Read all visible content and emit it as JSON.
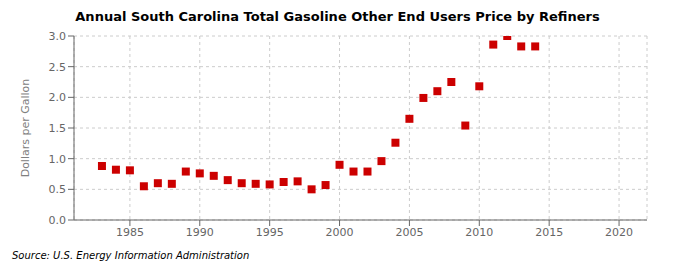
{
  "chart_data": {
    "type": "scatter",
    "title": "Annual South Carolina Total Gasoline Other End Users Price by Refiners",
    "ylabel": "Dollars per Gallon",
    "annotations": [
      "Source: U.S. Energy Information Administration"
    ],
    "x": [
      1983,
      1984,
      1985,
      1986,
      1987,
      1988,
      1989,
      1990,
      1991,
      1992,
      1993,
      1994,
      1995,
      1996,
      1997,
      1998,
      1999,
      2000,
      2001,
      2002,
      2003,
      2004,
      2005,
      2006,
      2007,
      2008,
      2009,
      2010,
      2011,
      2012,
      2013,
      2014
    ],
    "values": [
      0.88,
      0.82,
      0.81,
      0.55,
      0.6,
      0.59,
      0.79,
      0.76,
      0.72,
      0.65,
      0.6,
      0.59,
      0.58,
      0.62,
      0.63,
      0.5,
      0.57,
      0.9,
      0.79,
      0.79,
      0.96,
      1.26,
      1.65,
      1.99,
      2.1,
      2.25,
      1.54,
      2.18,
      2.86,
      3.0,
      2.83,
      2.83
    ],
    "color": "#cc0000",
    "marker": "square",
    "xlim": [
      1981,
      2022
    ],
    "ylim": [
      0.0,
      3.0
    ],
    "xticks": [
      1985,
      1990,
      1995,
      2000,
      2005,
      2010,
      2015,
      2020
    ],
    "yticks": [
      {
        "value": 0.0,
        "label": "0.0"
      },
      0.5,
      {
        "value": 1.0,
        "label": "1.0"
      },
      1.5,
      {
        "value": 2.0,
        "label": "2.0"
      },
      2.5,
      {
        "value": 3.0,
        "label": "3.0"
      }
    ],
    "grid": true
  }
}
